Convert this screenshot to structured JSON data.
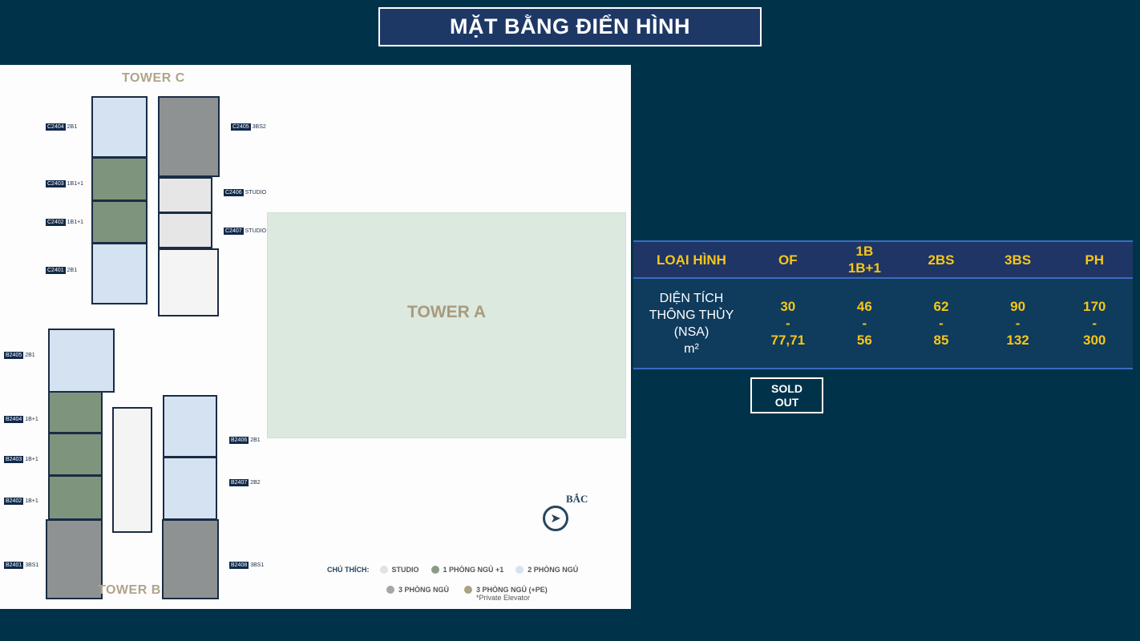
{
  "title": "MẶT BẰNG ĐIỂN HÌNH",
  "plan": {
    "tower_c": "TOWER C",
    "tower_b": "TOWER B",
    "tower_a": "TOWER A",
    "north": "BẮC",
    "units": {
      "c2404": {
        "code": "C2404",
        "type": "2B1"
      },
      "c2405": {
        "code": "C2405",
        "type": "3BS2"
      },
      "c2406": {
        "code": "C2406",
        "type": "STUDIO"
      },
      "c2403": {
        "code": "C2403",
        "type": "1B1+1"
      },
      "c2402": {
        "code": "C2402",
        "type": "1B1+1"
      },
      "c2407": {
        "code": "C2407",
        "type": "STUDIO"
      },
      "c2401": {
        "code": "C2401",
        "type": "2B1"
      },
      "b2405": {
        "code": "B2405",
        "type": "2B1"
      },
      "b2404": {
        "code": "B2404",
        "type": "1B+1"
      },
      "b2403": {
        "code": "B2403",
        "type": "1B+1"
      },
      "b2402": {
        "code": "B2402",
        "type": "1B+1"
      },
      "b2401": {
        "code": "B2401",
        "type": "3BS1"
      },
      "b2406": {
        "code": "B2406",
        "type": "2B1"
      },
      "b2407": {
        "code": "B2407",
        "type": "2B2"
      },
      "b2408": {
        "code": "B2408",
        "type": "3BS1"
      }
    },
    "legend": {
      "title": "CHÚ THÍCH:",
      "items": [
        {
          "label": "STUDIO",
          "color": "#e2e2e2"
        },
        {
          "label": "1 PHÒNG NGỦ +1",
          "color": "#8a9a86"
        },
        {
          "label": "2 PHÒNG NGỦ",
          "color": "#d5e2f1"
        },
        {
          "label": "3 PHÒNG NGỦ",
          "color": "#a6a6a6"
        },
        {
          "label": "3 PHÒNG NGỦ (+PE)",
          "color": "#aaa285",
          "note": "*Private Elevator"
        }
      ]
    }
  },
  "table": {
    "header": [
      "LOẠI HÌNH",
      "OF",
      "1B",
      "1B+1",
      "2BS",
      "3BS",
      "PH"
    ],
    "row_label": [
      "DIỆN TÍCH",
      "THÔNG THỦY",
      "(NSA)",
      "m²"
    ],
    "values": [
      {
        "min": "30",
        "max": "77,71"
      },
      {
        "min": "46",
        "max": "56"
      },
      {
        "min": "62",
        "max": "85"
      },
      {
        "min": "90",
        "max": "132"
      },
      {
        "min": "170",
        "max": "300"
      }
    ],
    "dash": "-"
  },
  "sold_out": [
    "SOLD",
    "OUT"
  ],
  "colors": {
    "background": "#00334a",
    "accent": "#f6c619",
    "header_bg": "#1f3566"
  }
}
